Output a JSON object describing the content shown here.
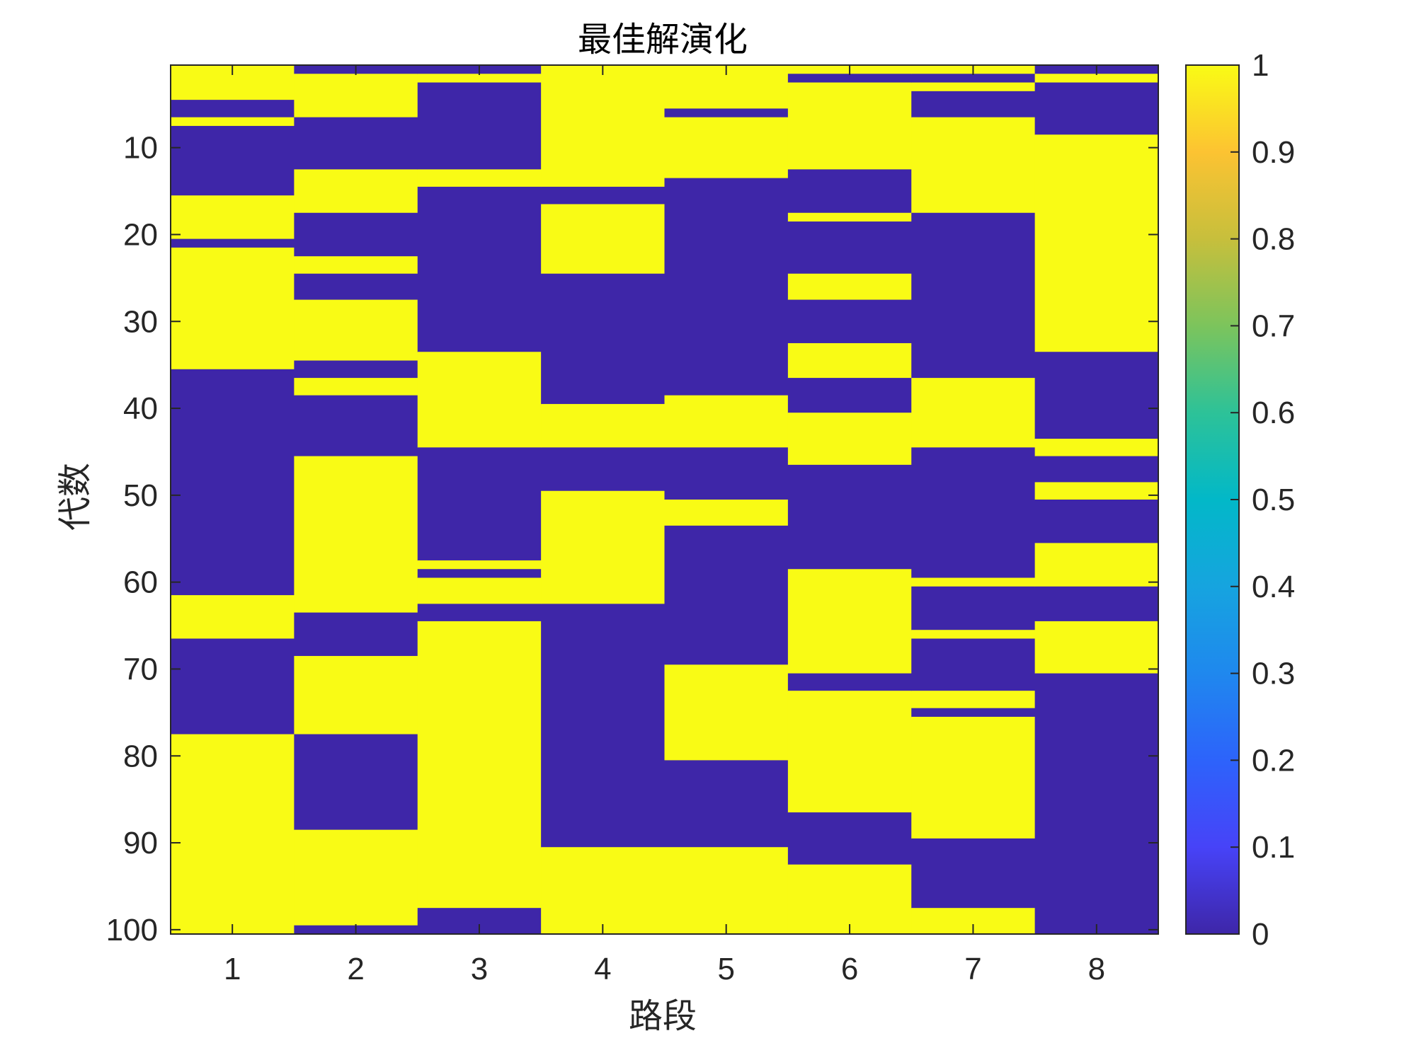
{
  "chart_data": {
    "type": "heatmap",
    "title": "最佳解演化",
    "xlabel": "路段",
    "ylabel": "代数",
    "x_categories": [
      "1",
      "2",
      "3",
      "4",
      "5",
      "6",
      "7",
      "8"
    ],
    "y_ticks": [
      10,
      20,
      30,
      40,
      50,
      60,
      70,
      80,
      90,
      100
    ],
    "y_range": [
      1,
      100
    ],
    "colorbar": {
      "ticks": [
        "0",
        "0.1",
        "0.2",
        "0.3",
        "0.4",
        "0.5",
        "0.6",
        "0.7",
        "0.8",
        "0.9",
        "1"
      ],
      "range": [
        0,
        1
      ],
      "colormap": "parula"
    },
    "colors": {
      "zero": "#3E26A8",
      "one": "#F9FB15",
      "axis": "#262626"
    },
    "value_runs_note_free": true,
    "columns": [
      {
        "route": "1",
        "runs": [
          [
            1,
            4,
            1
          ],
          [
            5,
            6,
            0
          ],
          [
            7,
            7,
            1
          ],
          [
            8,
            15,
            0
          ],
          [
            16,
            20,
            1
          ],
          [
            21,
            21,
            0
          ],
          [
            22,
            35,
            1
          ],
          [
            36,
            61,
            0
          ],
          [
            62,
            66,
            1
          ],
          [
            67,
            77,
            0
          ],
          [
            78,
            100,
            1
          ]
        ]
      },
      {
        "route": "2",
        "runs": [
          [
            1,
            1,
            0
          ],
          [
            2,
            6,
            1
          ],
          [
            7,
            12,
            0
          ],
          [
            13,
            17,
            1
          ],
          [
            18,
            22,
            0
          ],
          [
            23,
            24,
            1
          ],
          [
            25,
            27,
            0
          ],
          [
            28,
            34,
            1
          ],
          [
            35,
            36,
            0
          ],
          [
            37,
            38,
            1
          ],
          [
            39,
            45,
            0
          ],
          [
            46,
            63,
            1
          ],
          [
            64,
            68,
            0
          ],
          [
            69,
            77,
            1
          ],
          [
            78,
            88,
            0
          ],
          [
            89,
            99,
            1
          ],
          [
            100,
            100,
            0
          ]
        ]
      },
      {
        "route": "3",
        "runs": [
          [
            1,
            1,
            0
          ],
          [
            2,
            2,
            1
          ],
          [
            3,
            12,
            0
          ],
          [
            13,
            14,
            1
          ],
          [
            15,
            33,
            0
          ],
          [
            34,
            44,
            1
          ],
          [
            45,
            57,
            0
          ],
          [
            58,
            58,
            1
          ],
          [
            59,
            59,
            0
          ],
          [
            60,
            62,
            1
          ],
          [
            63,
            64,
            0
          ],
          [
            65,
            97,
            1
          ],
          [
            98,
            100,
            0
          ]
        ]
      },
      {
        "route": "4",
        "runs": [
          [
            1,
            14,
            1
          ],
          [
            15,
            16,
            0
          ],
          [
            17,
            24,
            1
          ],
          [
            25,
            39,
            0
          ],
          [
            40,
            44,
            1
          ],
          [
            45,
            49,
            0
          ],
          [
            50,
            62,
            1
          ],
          [
            63,
            90,
            0
          ],
          [
            91,
            100,
            1
          ]
        ]
      },
      {
        "route": "5",
        "runs": [
          [
            1,
            5,
            1
          ],
          [
            6,
            6,
            0
          ],
          [
            7,
            13,
            1
          ],
          [
            14,
            38,
            0
          ],
          [
            39,
            44,
            1
          ],
          [
            45,
            50,
            0
          ],
          [
            51,
            53,
            1
          ],
          [
            54,
            69,
            0
          ],
          [
            70,
            80,
            1
          ],
          [
            81,
            90,
            0
          ],
          [
            91,
            100,
            1
          ]
        ]
      },
      {
        "route": "6",
        "runs": [
          [
            1,
            1,
            1
          ],
          [
            2,
            2,
            0
          ],
          [
            3,
            12,
            1
          ],
          [
            13,
            17,
            0
          ],
          [
            18,
            18,
            1
          ],
          [
            19,
            24,
            0
          ],
          [
            25,
            27,
            1
          ],
          [
            28,
            32,
            0
          ],
          [
            33,
            36,
            1
          ],
          [
            37,
            40,
            0
          ],
          [
            41,
            46,
            1
          ],
          [
            47,
            58,
            0
          ],
          [
            59,
            70,
            1
          ],
          [
            71,
            72,
            0
          ],
          [
            73,
            86,
            1
          ],
          [
            87,
            92,
            0
          ],
          [
            93,
            100,
            1
          ]
        ]
      },
      {
        "route": "7",
        "runs": [
          [
            1,
            1,
            1
          ],
          [
            2,
            2,
            0
          ],
          [
            3,
            3,
            1
          ],
          [
            4,
            6,
            0
          ],
          [
            7,
            17,
            1
          ],
          [
            18,
            36,
            0
          ],
          [
            37,
            44,
            1
          ],
          [
            45,
            59,
            0
          ],
          [
            60,
            60,
            1
          ],
          [
            61,
            65,
            0
          ],
          [
            66,
            66,
            1
          ],
          [
            67,
            72,
            0
          ],
          [
            73,
            74,
            1
          ],
          [
            75,
            75,
            0
          ],
          [
            76,
            89,
            1
          ],
          [
            90,
            97,
            0
          ],
          [
            98,
            100,
            1
          ]
        ]
      },
      {
        "route": "8",
        "runs": [
          [
            1,
            1,
            0
          ],
          [
            2,
            2,
            1
          ],
          [
            3,
            8,
            0
          ],
          [
            9,
            33,
            1
          ],
          [
            34,
            43,
            0
          ],
          [
            44,
            45,
            1
          ],
          [
            46,
            48,
            0
          ],
          [
            49,
            50,
            1
          ],
          [
            51,
            55,
            0
          ],
          [
            56,
            60,
            1
          ],
          [
            61,
            64,
            0
          ],
          [
            65,
            70,
            1
          ],
          [
            71,
            100,
            0
          ]
        ]
      }
    ]
  }
}
